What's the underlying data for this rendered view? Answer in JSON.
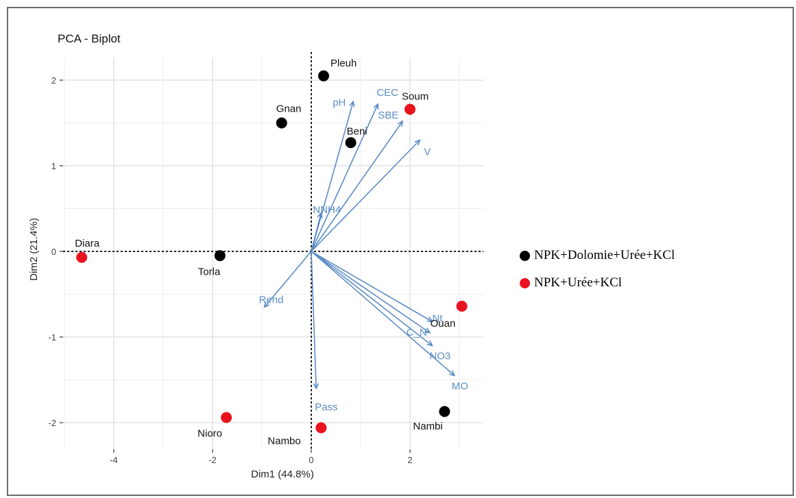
{
  "chart_data": {
    "type": "scatter",
    "title": "PCA - Biplot",
    "xlabel": "Dim1 (44.8%)",
    "ylabel": "Dim2 (21.4%)",
    "xlim": [
      -5.3,
      3.4
    ],
    "ylim": [
      -2.3,
      2.3
    ],
    "x_ticks": [
      -4,
      -2,
      0,
      2
    ],
    "y_ticks": [
      -2,
      -1,
      0,
      1,
      2
    ],
    "x_tick_labels": [
      "-4",
      "-2",
      "0",
      "2"
    ],
    "y_tick_labels": [
      "-2",
      "-1",
      "0",
      "1",
      "2"
    ],
    "grid": true,
    "legend_position": "right",
    "groups": [
      {
        "name": "NPK+Dolomie+Urée+KCl",
        "color": "#000000"
      },
      {
        "name": "NPK+Urée+KCl",
        "color": "#e8131f"
      }
    ],
    "points": [
      {
        "label": "Pleuh",
        "x": 0.25,
        "y": 2.05,
        "group": 0
      },
      {
        "label": "Soum",
        "x": 2.0,
        "y": 1.66,
        "group": 1
      },
      {
        "label": "Gnan",
        "x": -0.6,
        "y": 1.5,
        "group": 0
      },
      {
        "label": "Beni",
        "x": 0.8,
        "y": 1.27,
        "group": 0
      },
      {
        "label": "Diara",
        "x": -4.65,
        "y": -0.07,
        "group": 1
      },
      {
        "label": "Torla",
        "x": -1.85,
        "y": -0.05,
        "group": 0
      },
      {
        "label": "Ouan",
        "x": 3.05,
        "y": -0.64,
        "group": 1
      },
      {
        "label": "Nambi",
        "x": 2.7,
        "y": -1.87,
        "group": 0
      },
      {
        "label": "Nioro",
        "x": -1.72,
        "y": -1.94,
        "group": 1
      },
      {
        "label": "Nambo",
        "x": 0.2,
        "y": -2.06,
        "group": 1
      }
    ],
    "vectors": [
      {
        "label": "CEC",
        "x": 1.35,
        "y": 1.72
      },
      {
        "label": "SBE",
        "x": 1.85,
        "y": 1.52
      },
      {
        "label": "pH",
        "x": 0.85,
        "y": 1.75
      },
      {
        "label": "V",
        "x": 2.2,
        "y": 1.3
      },
      {
        "label": "NNH4",
        "x": 0.2,
        "y": 0.45
      },
      {
        "label": "Rend",
        "x": -0.95,
        "y": -0.65
      },
      {
        "label": "Pass",
        "x": 0.1,
        "y": -1.6
      },
      {
        "label": "Nt",
        "x": 2.45,
        "y": -0.82
      },
      {
        "label": "C_N",
        "x": 2.4,
        "y": -0.95
      },
      {
        "label": "NO3",
        "x": 2.45,
        "y": -1.1
      },
      {
        "label": "MO",
        "x": 2.9,
        "y": -1.45
      }
    ],
    "vector_color": "#5b8cc6"
  }
}
